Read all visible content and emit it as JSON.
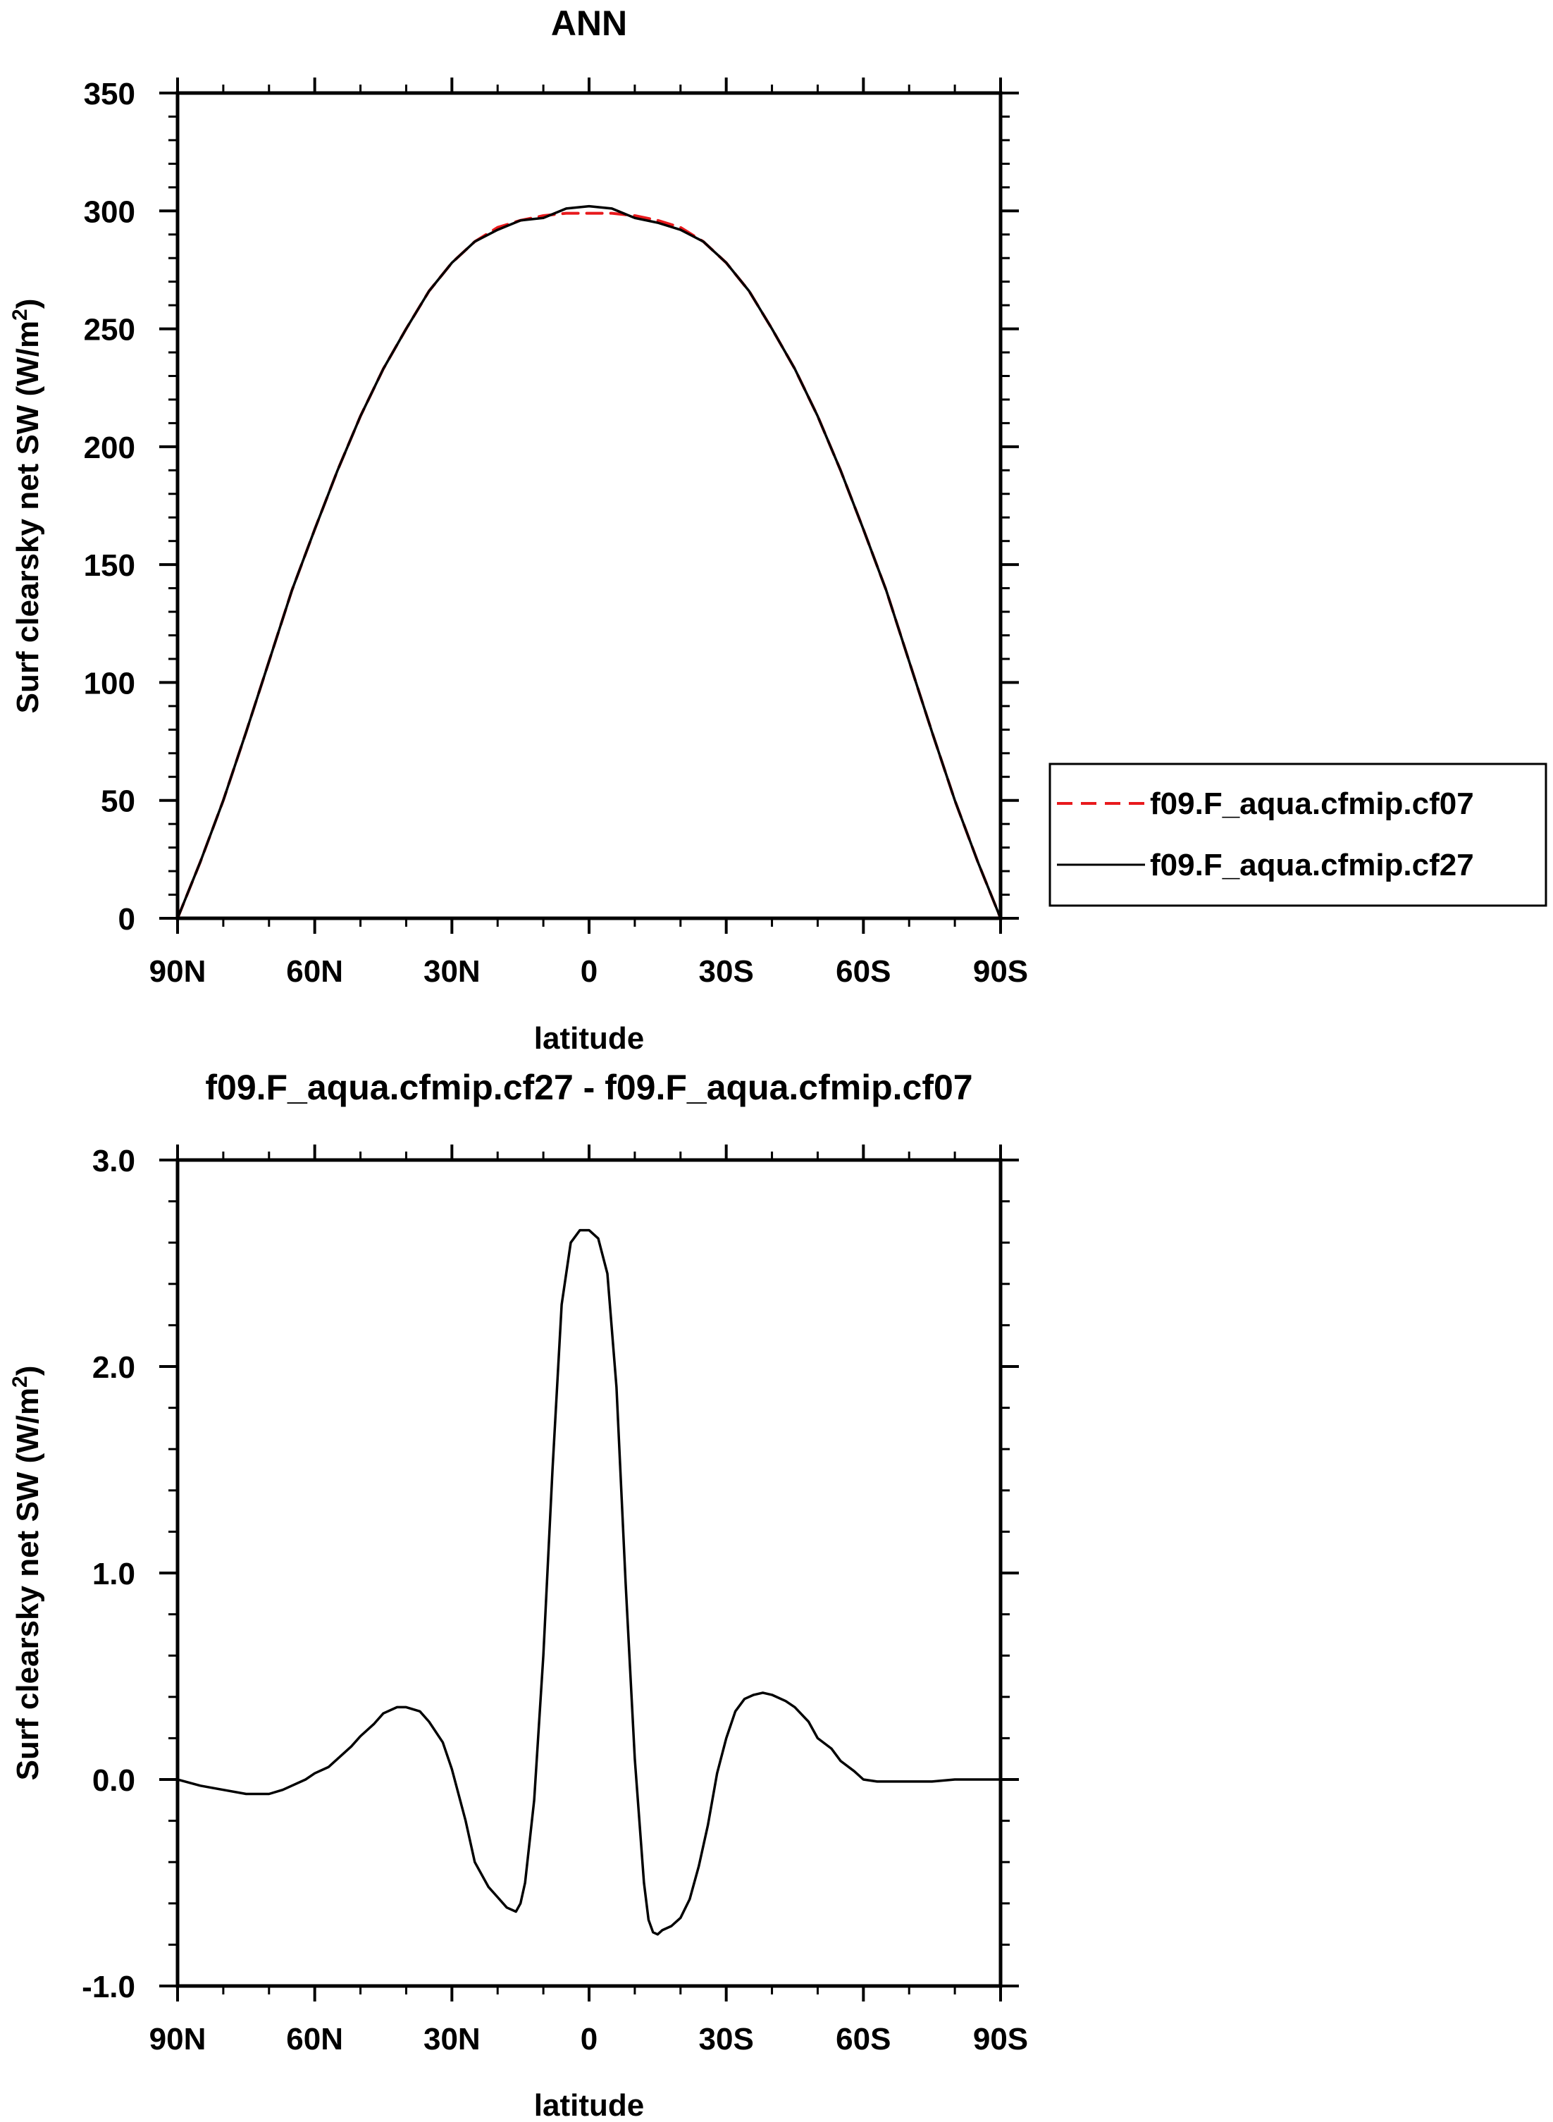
{
  "chart_data": [
    {
      "type": "line",
      "title": "ANN",
      "xlabel": "latitude",
      "ylabel_prefix": "Surf clearsky net SW (W/m",
      "ylabel_sup": "2",
      "ylabel_suffix": ")",
      "x_tick_labels": [
        "90N",
        "60N",
        "30N",
        "0",
        "30S",
        "60S",
        "90S"
      ],
      "x_tick_values": [
        90,
        60,
        30,
        0,
        -30,
        -60,
        -90
      ],
      "xlim": [
        90,
        -90
      ],
      "y_tick_labels": [
        "0",
        "50",
        "100",
        "150",
        "200",
        "250",
        "300",
        "350"
      ],
      "y_tick_values": [
        0,
        50,
        100,
        150,
        200,
        250,
        300,
        350
      ],
      "ylim": [
        0,
        350
      ],
      "grid": false,
      "legend_position": "right",
      "series": [
        {
          "name": "f09.F_aqua.cfmip.cf07",
          "color": "#e8191c",
          "dash": "dashed",
          "x": [
            90,
            85,
            80,
            75,
            70,
            65,
            60,
            55,
            50,
            45,
            40,
            35,
            30,
            25,
            20,
            15,
            10,
            5,
            0,
            -5,
            -10,
            -15,
            -20,
            -25,
            -30,
            -35,
            -40,
            -45,
            -50,
            -55,
            -60,
            -65,
            -70,
            -75,
            -80,
            -85,
            -90
          ],
          "y": [
            0,
            24,
            50,
            79,
            109,
            139,
            165,
            190,
            213,
            233,
            250,
            266,
            278,
            287,
            293,
            296,
            298,
            299,
            299,
            299,
            298,
            296,
            293,
            287,
            278,
            266,
            250,
            233,
            213,
            190,
            165,
            139,
            109,
            79,
            50,
            24,
            0
          ]
        },
        {
          "name": "f09.F_aqua.cfmip.cf27",
          "color": "#000000",
          "dash": "solid",
          "x": [
            90,
            85,
            80,
            75,
            70,
            65,
            60,
            55,
            50,
            45,
            40,
            35,
            30,
            25,
            20,
            15,
            10,
            5,
            0,
            -5,
            -10,
            -15,
            -20,
            -25,
            -30,
            -35,
            -40,
            -45,
            -50,
            -55,
            -60,
            -65,
            -70,
            -75,
            -80,
            -85,
            -90
          ],
          "y": [
            0,
            24,
            50,
            79,
            109,
            139,
            165,
            190,
            213,
            233,
            250,
            266,
            278,
            287,
            292,
            296,
            297,
            301,
            302,
            301,
            297,
            295,
            292,
            287,
            278,
            266,
            250,
            233,
            213,
            190,
            165,
            139,
            109,
            79,
            50,
            24,
            0
          ]
        }
      ]
    },
    {
      "type": "line",
      "title": "f09.F_aqua.cfmip.cf27 - f09.F_aqua.cfmip.cf07",
      "xlabel": "latitude",
      "ylabel_prefix": "Surf clearsky net SW (W/m",
      "ylabel_sup": "2",
      "ylabel_suffix": ")",
      "x_tick_labels": [
        "90N",
        "60N",
        "30N",
        "0",
        "30S",
        "60S",
        "90S"
      ],
      "x_tick_values": [
        90,
        60,
        30,
        0,
        -30,
        -60,
        -90
      ],
      "xlim": [
        90,
        -90
      ],
      "y_tick_labels": [
        "-1.0",
        "0.0",
        "1.0",
        "2.0",
        "3.0"
      ],
      "y_tick_values": [
        -1,
        0,
        1,
        2,
        3
      ],
      "ylim": [
        -1,
        3
      ],
      "grid": false,
      "series": [
        {
          "color": "#000000",
          "dash": "solid",
          "x": [
            90,
            85,
            80,
            75,
            70,
            67,
            65,
            62,
            60,
            57,
            55,
            52,
            50,
            47,
            45,
            42,
            40,
            37,
            35,
            32,
            30,
            27,
            25,
            22,
            20,
            18,
            16,
            15,
            14,
            12,
            10,
            8,
            6,
            4,
            2,
            0,
            -2,
            -4,
            -6,
            -8,
            -10,
            -12,
            -13,
            -14,
            -15,
            -16,
            -18,
            -20,
            -22,
            -24,
            -26,
            -28,
            -30,
            -32,
            -34,
            -36,
            -38,
            -40,
            -43,
            -45,
            -48,
            -50,
            -53,
            -55,
            -58,
            -60,
            -63,
            -65,
            -70,
            -75,
            -80,
            -85,
            -90
          ],
          "y": [
            0.0,
            -0.03,
            -0.05,
            -0.07,
            -0.07,
            -0.05,
            -0.03,
            0.0,
            0.03,
            0.06,
            0.1,
            0.16,
            0.21,
            0.27,
            0.32,
            0.35,
            0.35,
            0.33,
            0.28,
            0.18,
            0.05,
            -0.2,
            -0.4,
            -0.52,
            -0.57,
            -0.62,
            -0.64,
            -0.6,
            -0.5,
            -0.1,
            0.6,
            1.5,
            2.3,
            2.6,
            2.66,
            2.66,
            2.62,
            2.45,
            1.9,
            0.95,
            0.1,
            -0.5,
            -0.68,
            -0.74,
            -0.75,
            -0.73,
            -0.71,
            -0.67,
            -0.58,
            -0.42,
            -0.22,
            0.03,
            0.2,
            0.33,
            0.39,
            0.41,
            0.42,
            0.41,
            0.38,
            0.35,
            0.28,
            0.2,
            0.15,
            0.09,
            0.04,
            0.0,
            -0.01,
            -0.01,
            -0.01,
            -0.01,
            0.0,
            0.0,
            0.0
          ]
        }
      ]
    }
  ]
}
